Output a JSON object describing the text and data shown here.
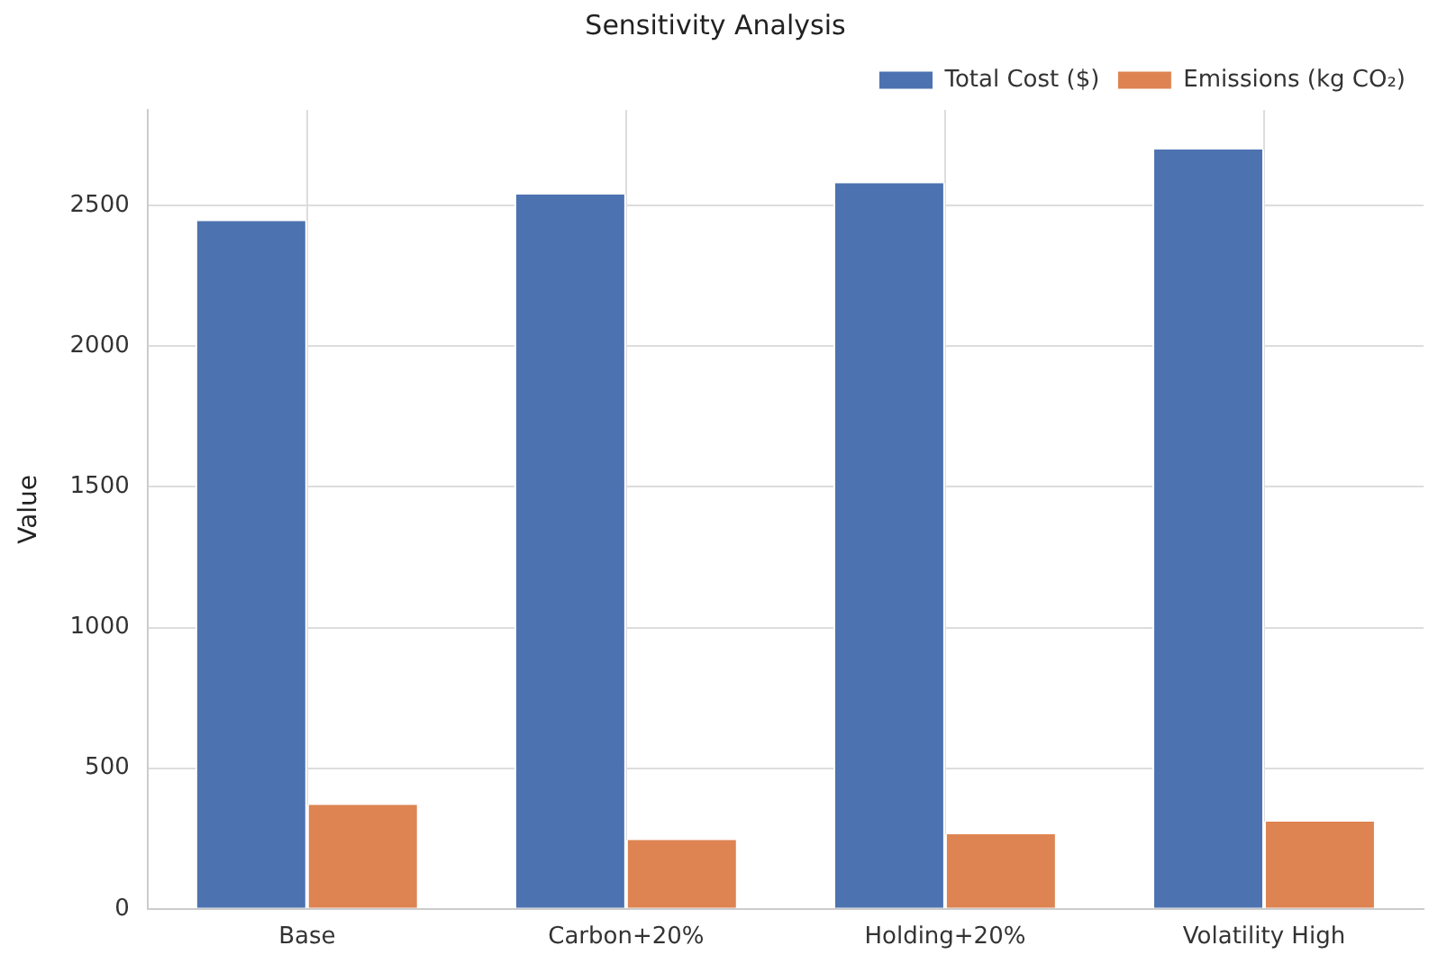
{
  "chart_data": {
    "type": "bar",
    "title": "Sensitivity Analysis",
    "ylabel": "Value",
    "categories": [
      "Base",
      "Carbon+20%",
      "Holding+20%",
      "Volatility High"
    ],
    "series": [
      {
        "name": "Total Cost ($)",
        "color": "#4c72b0",
        "values": [
          2445,
          2540,
          2580,
          2700
        ]
      },
      {
        "name": "Emissions (kg CO₂)",
        "color": "#dd8452",
        "values": [
          370,
          245,
          265,
          310
        ]
      }
    ],
    "ylim": [
      0,
      2840
    ],
    "yticks": [
      0,
      500,
      1000,
      1500,
      2000,
      2500
    ],
    "grid": true,
    "legend": "top right"
  }
}
